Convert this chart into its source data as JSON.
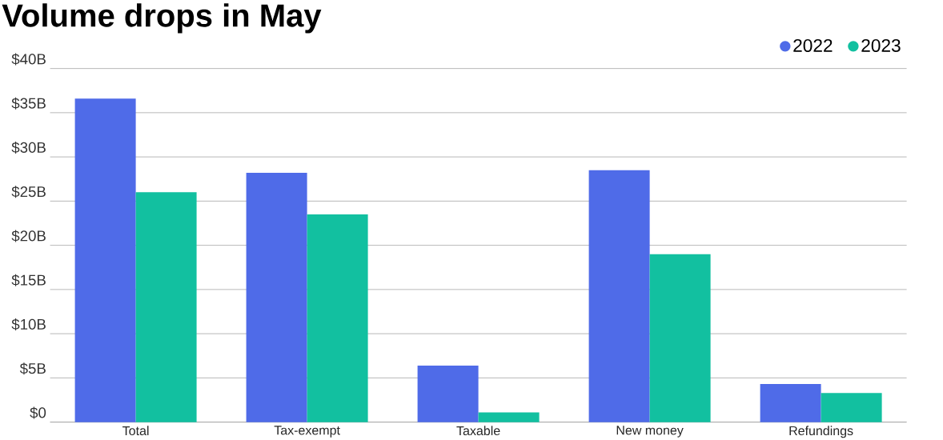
{
  "chart_data": {
    "type": "bar",
    "title": "Volume drops in May",
    "categories": [
      "Total",
      "Tax-exempt",
      "Taxable",
      "New money",
      "Refundings"
    ],
    "series": [
      {
        "name": "2022",
        "color": "#4f6be8",
        "values": [
          36.6,
          28.2,
          6.4,
          28.5,
          4.3
        ]
      },
      {
        "name": "2023",
        "color": "#12c0a0",
        "values": [
          26.0,
          23.5,
          1.1,
          19.0,
          3.3
        ]
      }
    ],
    "ylim": [
      0,
      40
    ],
    "yticks": [
      {
        "value": 0,
        "label": "$0"
      },
      {
        "value": 5,
        "label": "$5B"
      },
      {
        "value": 10,
        "label": "$10B"
      },
      {
        "value": 15,
        "label": "$15B"
      },
      {
        "value": 20,
        "label": "$20B"
      },
      {
        "value": 25,
        "label": "$25B"
      },
      {
        "value": 30,
        "label": "$30B"
      },
      {
        "value": 35,
        "label": "$35B"
      },
      {
        "value": 40,
        "label": "$40B"
      }
    ],
    "grid": "y",
    "legend": "top right"
  }
}
